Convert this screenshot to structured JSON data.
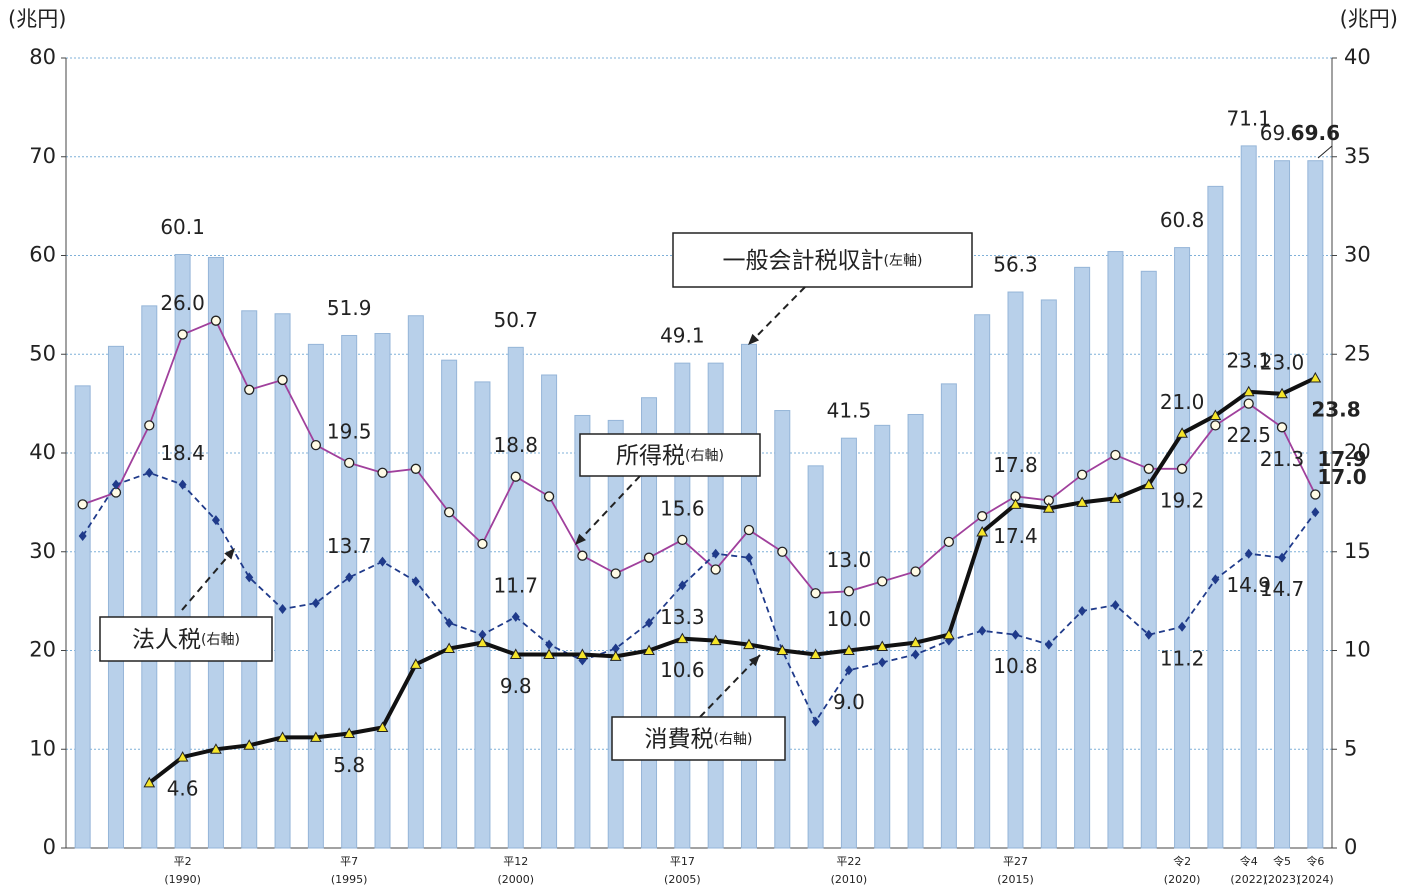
{
  "chart_data": {
    "type": "bar",
    "y_title": "(兆円)",
    "y2_title": "(兆円)",
    "categories": [
      null,
      null,
      null,
      "平2",
      null,
      null,
      null,
      null,
      "平7",
      null,
      null,
      null,
      null,
      "平12",
      null,
      null,
      null,
      null,
      "平17",
      null,
      null,
      null,
      null,
      "平22",
      null,
      null,
      null,
      null,
      "平27",
      null,
      null,
      null,
      null,
      "令2",
      null,
      "令4",
      "令5",
      "令6"
    ],
    "category_years": [
      null,
      null,
      null,
      "(1990)",
      null,
      null,
      null,
      null,
      "(1995)",
      null,
      null,
      null,
      null,
      "(2000)",
      null,
      null,
      null,
      null,
      "(2005)",
      null,
      null,
      null,
      null,
      "(2010)",
      null,
      null,
      null,
      null,
      "(2015)",
      null,
      null,
      null,
      null,
      "(2020)",
      null,
      "(2022)",
      "(2023)",
      "(2024)"
    ],
    "ylim": [
      0,
      80
    ],
    "yticks": [
      0,
      10,
      20,
      30,
      40,
      50,
      60,
      70,
      80
    ],
    "y2lim": [
      0,
      40
    ],
    "y2ticks": [
      0,
      5,
      10,
      15,
      20,
      25,
      30,
      35,
      40
    ],
    "grid": true,
    "series": [
      {
        "name": "一般会計税収計",
        "axis_label": "(左軸)",
        "type": "bar",
        "color": "#b8d0ea",
        "values": [
          46.8,
          50.8,
          54.9,
          60.1,
          59.8,
          54.4,
          54.1,
          51.0,
          51.9,
          52.1,
          53.9,
          49.4,
          47.2,
          50.7,
          47.9,
          43.8,
          43.3,
          45.6,
          49.1,
          49.1,
          51.0,
          44.3,
          38.7,
          41.5,
          42.8,
          43.9,
          47.0,
          54.0,
          56.3,
          55.5,
          58.8,
          60.4,
          58.4,
          60.8,
          67.0,
          71.1,
          69.6,
          69.6
        ],
        "value_labels": [
          null,
          null,
          null,
          "60.1",
          null,
          null,
          null,
          null,
          "51.9",
          null,
          null,
          null,
          null,
          "50.7",
          null,
          null,
          null,
          null,
          "49.1",
          null,
          null,
          null,
          null,
          "41.5",
          null,
          null,
          null,
          null,
          "56.3",
          null,
          null,
          null,
          null,
          "60.8",
          null,
          "71.1",
          "69.6",
          "69.6"
        ]
      },
      {
        "name": "所得税",
        "axis_label": "(右軸)",
        "type": "line",
        "axis": "y2",
        "color": "#a0409c",
        "values": [
          17.4,
          18.0,
          21.4,
          26.0,
          26.7,
          23.2,
          23.7,
          20.4,
          19.5,
          19.0,
          19.2,
          17.0,
          15.4,
          18.8,
          17.8,
          14.8,
          13.9,
          14.7,
          15.6,
          14.1,
          16.1,
          15.0,
          12.9,
          13.0,
          13.5,
          14.0,
          15.5,
          16.8,
          17.8,
          17.6,
          18.9,
          19.9,
          19.2,
          19.2,
          21.4,
          22.5,
          21.3,
          17.9
        ],
        "value_labels": [
          null,
          null,
          null,
          "26.0",
          null,
          null,
          null,
          null,
          "19.5",
          null,
          null,
          null,
          null,
          "18.8",
          null,
          null,
          null,
          null,
          "15.6",
          null,
          null,
          null,
          null,
          "13.0",
          null,
          null,
          null,
          null,
          "17.8",
          null,
          null,
          null,
          null,
          "19.2",
          null,
          "22.5",
          "21.3",
          "17.9"
        ]
      },
      {
        "name": "法人税",
        "axis_label": "(右軸)",
        "type": "line",
        "axis": "y2",
        "color": "#1f3a8a",
        "values": [
          15.8,
          18.4,
          19.0,
          18.4,
          16.6,
          13.7,
          12.1,
          12.4,
          13.7,
          14.5,
          13.5,
          11.4,
          10.8,
          11.7,
          10.3,
          9.5,
          10.1,
          11.4,
          13.3,
          14.9,
          14.7,
          10.0,
          6.4,
          9.0,
          9.4,
          9.8,
          10.5,
          11.0,
          10.8,
          10.3,
          12.0,
          12.3,
          10.8,
          11.2,
          13.6,
          14.9,
          14.7,
          17.0
        ],
        "value_labels": [
          null,
          null,
          null,
          "18.4",
          null,
          null,
          null,
          null,
          "13.7",
          null,
          null,
          null,
          null,
          "11.7",
          null,
          null,
          null,
          null,
          "13.3",
          null,
          null,
          null,
          null,
          "9.0",
          null,
          null,
          null,
          null,
          "10.8",
          null,
          null,
          null,
          null,
          "11.2",
          null,
          "14.9",
          "14.7",
          "17.0"
        ]
      },
      {
        "name": "消費税",
        "axis_label": "(右軸)",
        "type": "line",
        "axis": "y2",
        "color": "#111111",
        "values": [
          null,
          null,
          3.3,
          4.6,
          5.0,
          5.2,
          5.6,
          5.6,
          5.8,
          6.1,
          9.3,
          10.1,
          10.4,
          9.8,
          9.8,
          9.8,
          9.7,
          10.0,
          10.6,
          10.5,
          10.3,
          10.0,
          9.8,
          10.0,
          10.2,
          10.4,
          10.8,
          16.0,
          17.4,
          17.2,
          17.5,
          17.7,
          18.4,
          21.0,
          21.9,
          23.1,
          23.0,
          23.8
        ],
        "value_labels": [
          null,
          null,
          null,
          "4.6",
          null,
          null,
          null,
          null,
          "5.8",
          null,
          null,
          null,
          null,
          "9.8",
          null,
          null,
          null,
          null,
          "10.6",
          null,
          null,
          null,
          null,
          "10.0",
          null,
          null,
          null,
          null,
          "17.4",
          null,
          null,
          null,
          null,
          "21.0",
          null,
          "23.1",
          "23.0",
          "23.8"
        ]
      }
    ]
  }
}
